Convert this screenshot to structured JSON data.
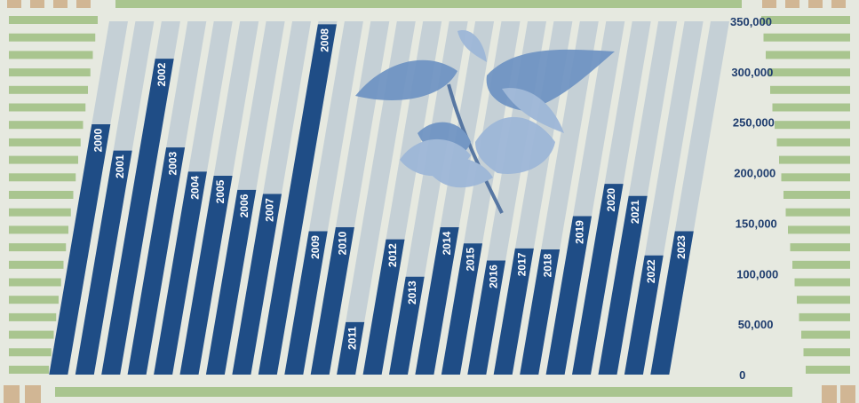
{
  "chart_data": {
    "type": "bar",
    "title": "",
    "xlabel": "",
    "ylabel": "",
    "ylim": [
      0,
      350000
    ],
    "yticks": [
      0,
      50000,
      100000,
      150000,
      200000,
      250000,
      300000,
      350000
    ],
    "ytick_labels": [
      "0",
      "50,000",
      "100,000",
      "150,000",
      "200,000",
      "250,000",
      "300,000",
      "350,000"
    ],
    "grid": false,
    "legend": "none",
    "categories": [
      "2000",
      "2001",
      "2002",
      "2003",
      "2004",
      "2005",
      "2006",
      "2007",
      "2008",
      "2009",
      "2010",
      "2011",
      "2012",
      "2013",
      "2014",
      "2015",
      "2016",
      "2017",
      "2018",
      "2019",
      "2020",
      "2021",
      "2022",
      "2023"
    ],
    "values": [
      248000,
      222000,
      313000,
      225000,
      201000,
      197000,
      183000,
      179000,
      347000,
      142000,
      146000,
      52000,
      134000,
      97000,
      146000,
      130000,
      113000,
      125000,
      124000,
      157000,
      189000,
      177000,
      118000,
      142000
    ],
    "colors": {
      "bar": "#1f4d86",
      "bar_track": "#c5d0d6",
      "background": "#e6e9e0",
      "stripe_green": "#a9c58f",
      "stripe_tan": "#d1b694",
      "leaf": "#6e93c3",
      "leaf_light": "#9cb6d8",
      "tick_label": "#1f3d6e"
    },
    "decoration": "stylized-plant-illustration"
  }
}
